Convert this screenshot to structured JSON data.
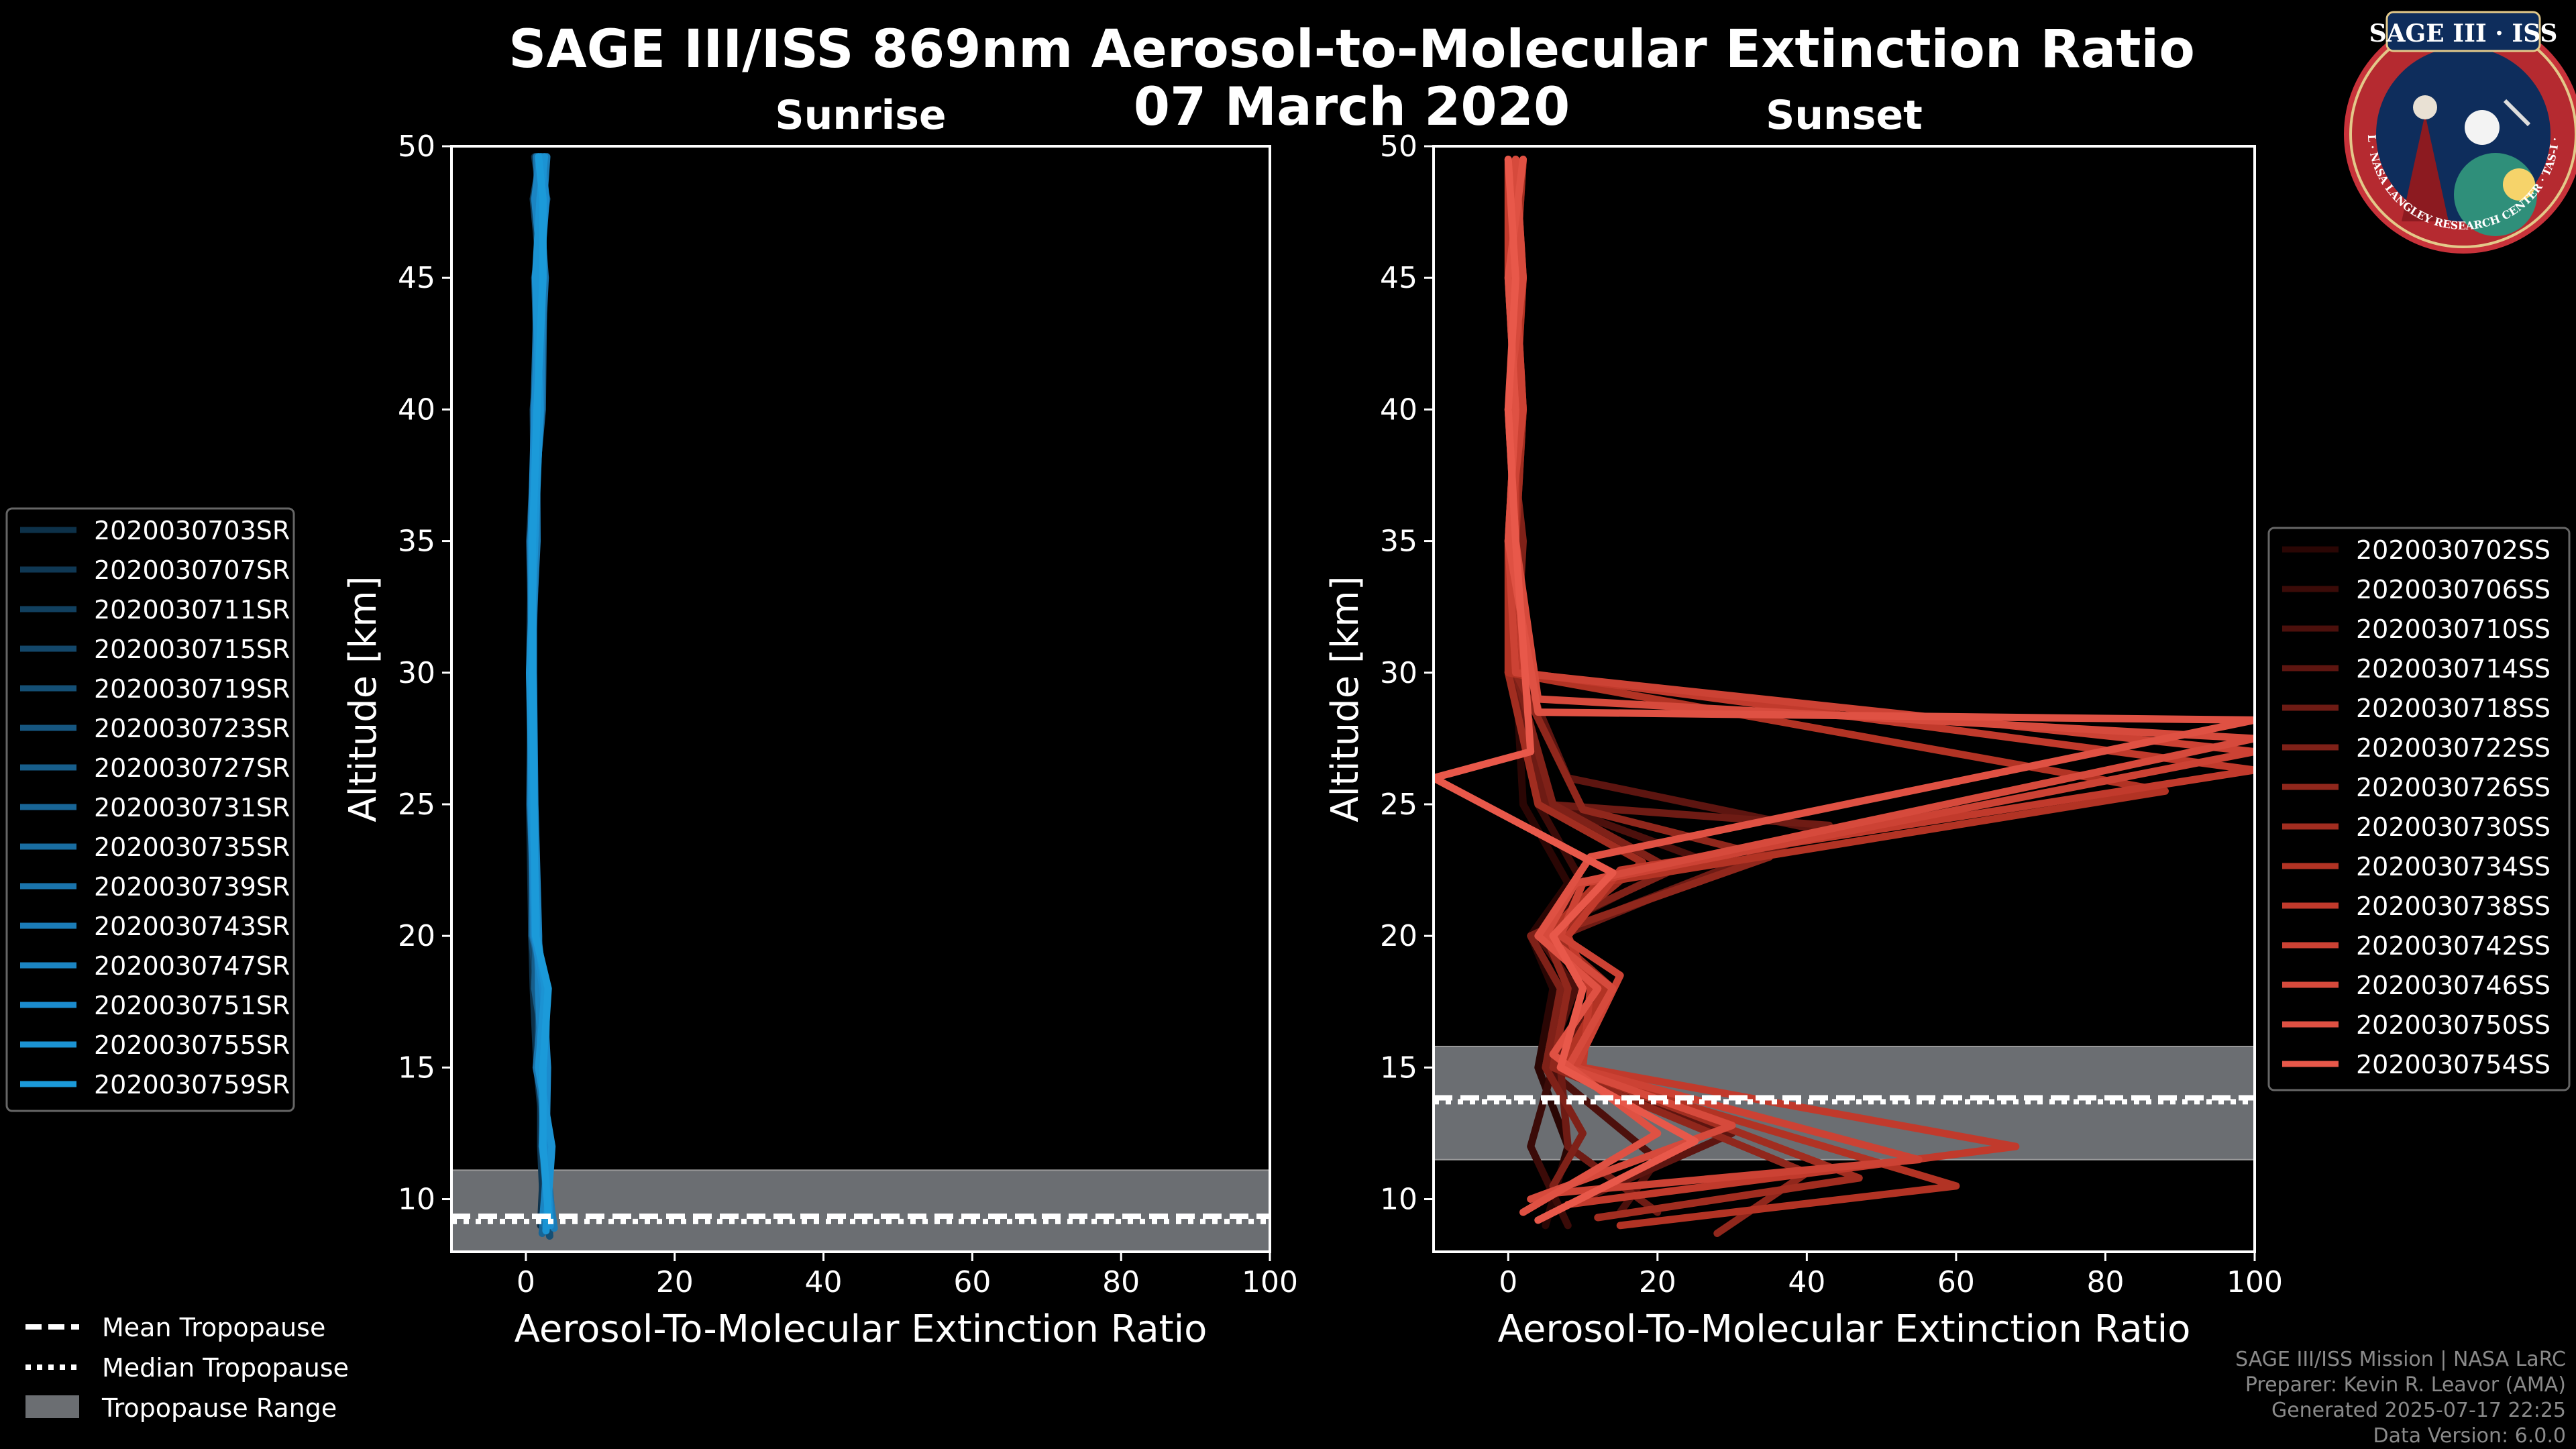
{
  "figure": {
    "title": "SAGE III/ISS 869nm Aerosol-to-Molecular Extinction Ratio",
    "date": "07 March 2020",
    "footer": [
      "SAGE III/ISS Mission | NASA LaRC",
      "Preparer: Kevin R. Leavor (AMA)",
      "Generated 2025-07-17 22:25",
      "Data Version: 6.0.0"
    ],
    "logo": {
      "title": "SAGE III · ISS",
      "ring_text": "BALL · NASA LANGLEY RESEARCH CENTER · TAS-I · ESA"
    },
    "colors": {
      "background": "#000000",
      "sunrise_accent": "#1b9ad9",
      "sunset_accent": "#e8584a",
      "tropopause_band": "#6b6e72"
    },
    "tropopause_legend": {
      "mean": "Mean Tropopause",
      "median": "Median Tropopause",
      "range": "Tropopause Range"
    }
  },
  "chart_data": [
    {
      "type": "line",
      "panel": "Sunrise",
      "title": "Sunrise",
      "xlabel": "Aerosol-To-Molecular Extinction Ratio",
      "ylabel": "Altitude [km]",
      "xlim": [
        -10,
        100
      ],
      "ylim": [
        8,
        50
      ],
      "xticks": [
        0,
        20,
        40,
        60,
        80,
        100
      ],
      "yticks": [
        10,
        15,
        20,
        25,
        30,
        35,
        40,
        45,
        50
      ],
      "legend_position": "left",
      "tropopause": {
        "mean_km": 9.35,
        "median_km": 9.15,
        "range_km": [
          8.0,
          11.1
        ]
      },
      "series": [
        {
          "name": "2020030703SR",
          "color": "#0d3149",
          "x": [
            2,
            2.5,
            1.5,
            1,
            0.8,
            0.5,
            0.8,
            1.2,
            1.5,
            2.5,
            2,
            1.2
          ],
          "y": [
            9,
            12,
            15,
            18,
            20,
            25,
            30,
            35,
            40,
            45,
            48,
            49.6
          ]
        },
        {
          "name": "2020030707SR",
          "color": "#0f3854",
          "x": [
            2.5,
            2,
            2,
            1.5,
            1,
            0.8,
            0.6,
            1,
            2,
            1.5,
            2.5,
            1.8
          ],
          "y": [
            8.8,
            12,
            15,
            18,
            20,
            25,
            30,
            35,
            40,
            45,
            48,
            49.6
          ]
        },
        {
          "name": "2020030711SR",
          "color": "#11405f",
          "x": [
            3,
            2.5,
            1.8,
            2,
            1.2,
            0.6,
            0.9,
            0.5,
            1.5,
            2,
            1,
            2
          ],
          "y": [
            9,
            12,
            15,
            18,
            20,
            25,
            30,
            35,
            40,
            45,
            48,
            49.6
          ]
        },
        {
          "name": "2020030715SR",
          "color": "#13476a",
          "x": [
            2.8,
            3,
            2.2,
            1.5,
            0.8,
            1,
            0.7,
            1.2,
            1,
            2.5,
            2,
            2.2
          ],
          "y": [
            9.2,
            12,
            15,
            18,
            20,
            25,
            30,
            35,
            40,
            45,
            48,
            49.6
          ]
        },
        {
          "name": "2020030719SR",
          "color": "#144f75",
          "x": [
            3.2,
            2.2,
            2.5,
            2.2,
            1.5,
            0.8,
            0.5,
            0.8,
            1.8,
            1.2,
            2.8,
            1.5
          ],
          "y": [
            8.6,
            12,
            15,
            18,
            20,
            25,
            30,
            35,
            40,
            45,
            48,
            49.6
          ]
        },
        {
          "name": "2020030723SR",
          "color": "#165680",
          "x": [
            2.4,
            2.8,
            1.6,
            1.8,
            1.1,
            0.7,
            0.8,
            1.4,
            1.3,
            2.2,
            1.6,
            2.6
          ],
          "y": [
            9,
            12,
            15,
            18,
            20,
            25,
            30,
            35,
            40,
            45,
            48,
            49.6
          ]
        },
        {
          "name": "2020030727SR",
          "color": "#175e8b",
          "x": [
            3.5,
            2.4,
            2.8,
            1.2,
            1.4,
            0.9,
            0.6,
            1.1,
            1.6,
            1.8,
            2.2,
            2
          ],
          "y": [
            9.4,
            12,
            15,
            18,
            20,
            25,
            30,
            35,
            40,
            45,
            48,
            49.6
          ]
        },
        {
          "name": "2020030731SR",
          "color": "#186596",
          "x": [
            2.2,
            3.2,
            2,
            2.6,
            0.9,
            1.1,
            1,
            0.6,
            2.2,
            2.4,
            1.4,
            1.6
          ],
          "y": [
            8.7,
            12,
            15,
            18,
            20,
            25,
            30,
            35,
            40,
            45,
            48,
            49.6
          ]
        },
        {
          "name": "2020030735SR",
          "color": "#196da1",
          "x": [
            3.6,
            2.6,
            2.4,
            1.9,
            1.3,
            0.6,
            0.7,
            1.3,
            1.1,
            1.6,
            2.6,
            2.4
          ],
          "y": [
            9.1,
            12,
            15,
            18,
            20,
            25,
            30,
            35,
            40,
            45,
            48,
            49.6
          ]
        },
        {
          "name": "2020030739SR",
          "color": "#1a74ac",
          "x": [
            2.6,
            3.4,
            1.4,
            2.4,
            1.6,
            1,
            0.9,
            0.9,
            1.7,
            2.6,
            1.8,
            1.4
          ],
          "y": [
            9,
            12,
            15,
            18,
            20,
            25,
            30,
            35,
            40,
            45,
            48,
            49.6
          ]
        },
        {
          "name": "2020030743SR",
          "color": "#1b7cb7",
          "x": [
            3.8,
            2.2,
            2.6,
            2.8,
            1,
            0.8,
            0.6,
            1.5,
            1.4,
            1.4,
            2.4,
            2.8
          ],
          "y": [
            8.9,
            12,
            15,
            18,
            20,
            25,
            30,
            35,
            40,
            45,
            48,
            49.6
          ]
        },
        {
          "name": "2020030747SR",
          "color": "#1b84c2",
          "x": [
            2.3,
            3.1,
            2.1,
            1.7,
            1.7,
            1.2,
            1,
            1,
            2,
            2.2,
            1.2,
            1.9
          ],
          "y": [
            9.3,
            12,
            15,
            18,
            20,
            25,
            30,
            35,
            40,
            45,
            48,
            49.6
          ]
        },
        {
          "name": "2020030751SR",
          "color": "#1b8bcd",
          "x": [
            3.3,
            2.7,
            2.9,
            2.3,
            1.2,
            0.7,
            0.8,
            0.7,
            1.2,
            1.9,
            2.7,
            2.1
          ],
          "y": [
            9,
            12,
            15,
            18,
            20,
            25,
            30,
            35,
            40,
            45,
            48,
            49.6
          ]
        },
        {
          "name": "2020030755SR",
          "color": "#1b93d3",
          "x": [
            2.7,
            3.5,
            1.7,
            2.6,
            1.5,
            0.9,
            0.5,
            1.2,
            1.9,
            1.3,
            1.9,
            2.5
          ],
          "y": [
            8.8,
            12,
            15,
            18,
            20,
            25,
            30,
            35,
            40,
            45,
            48,
            49.6
          ]
        },
        {
          "name": "2020030759SR",
          "color": "#1b9ad9",
          "x": [
            3.1,
            2.3,
            2.3,
            3,
            1.3,
            1.1,
            0.9,
            0.9,
            1.5,
            2.3,
            2.3,
            1.7
          ],
          "y": [
            9.2,
            12,
            15,
            18,
            20,
            25,
            30,
            35,
            40,
            45,
            48,
            49.6
          ]
        }
      ]
    },
    {
      "type": "line",
      "panel": "Sunset",
      "title": "Sunset",
      "xlabel": "Aerosol-To-Molecular Extinction Ratio",
      "ylabel": "Altitude [km]",
      "xlim": [
        -10,
        100
      ],
      "ylim": [
        8,
        50
      ],
      "xticks": [
        0,
        20,
        40,
        60,
        80,
        100
      ],
      "yticks": [
        10,
        15,
        20,
        25,
        30,
        35,
        40,
        45,
        50
      ],
      "legend_position": "right",
      "tropopause": {
        "mean_km": 13.85,
        "median_km": 13.7,
        "range_km": [
          11.5,
          15.8
        ]
      },
      "series": [
        {
          "name": "2020030702SS",
          "color": "#2a0604",
          "x": [
            5,
            8,
            4,
            6,
            3,
            8,
            2,
            1,
            0,
            1,
            2,
            1
          ],
          "y": [
            9,
            12,
            15,
            18,
            20,
            22,
            25,
            30,
            35,
            40,
            45,
            49.5
          ]
        },
        {
          "name": "2020030706SS",
          "color": "#3b0b08",
          "x": [
            8,
            3,
            6,
            8,
            5,
            10,
            4,
            0,
            1,
            2,
            0,
            2
          ],
          "y": [
            9,
            12,
            15,
            18,
            20,
            22,
            25,
            30,
            35,
            40,
            45,
            49.5
          ]
        },
        {
          "name": "2020030710SS",
          "color": "#4c100c",
          "x": [
            15,
            20,
            5,
            9,
            4,
            25,
            6,
            1,
            0,
            1,
            2,
            0
          ],
          "y": [
            9.5,
            11.5,
            15,
            18,
            20,
            23,
            25,
            30,
            35,
            40,
            45,
            49.5
          ]
        },
        {
          "name": "2020030714SS",
          "color": "#5d1510",
          "x": [
            10,
            30,
            6,
            12,
            6,
            42,
            8,
            2,
            1,
            0,
            1,
            1
          ],
          "y": [
            10,
            12.5,
            15,
            18,
            20,
            24,
            26,
            30,
            35,
            40,
            45,
            49.5
          ]
        },
        {
          "name": "2020030718SS",
          "color": "#6e1b14",
          "x": [
            20,
            8,
            7,
            10,
            7,
            43,
            5,
            0,
            1,
            2,
            1,
            2
          ],
          "y": [
            9.5,
            12,
            15,
            18,
            20,
            24.2,
            25,
            30,
            35,
            40,
            45,
            49.5
          ]
        },
        {
          "name": "2020030722SS",
          "color": "#7f2118",
          "x": [
            6,
            10,
            5,
            7,
            3,
            22,
            6,
            1,
            2,
            0,
            2,
            0
          ],
          "y": [
            10.5,
            12.5,
            15,
            18,
            20,
            22.5,
            25,
            30,
            35,
            40,
            45,
            49.5
          ]
        },
        {
          "name": "2020030726SS",
          "color": "#90271c",
          "x": [
            28,
            40,
            6,
            8,
            5,
            35,
            10,
            1,
            0,
            1,
            0,
            1
          ],
          "y": [
            8.7,
            11,
            15,
            18,
            20,
            23,
            24.8,
            30,
            35,
            40,
            45,
            49.5
          ]
        },
        {
          "name": "2020030730SS",
          "color": "#a12d20",
          "x": [
            12,
            47,
            8,
            14,
            6,
            18,
            4,
            0,
            1,
            2,
            1,
            2
          ],
          "y": [
            9.3,
            10.8,
            15,
            18,
            20,
            22.8,
            25,
            30,
            35,
            40,
            45,
            49.5
          ]
        },
        {
          "name": "2020030734SS",
          "color": "#b23324",
          "x": [
            15,
            60,
            7,
            13,
            5,
            12,
            88,
            0,
            0,
            1,
            2,
            1
          ],
          "y": [
            9,
            10.5,
            15,
            18,
            20,
            22,
            25.5,
            30,
            35,
            40,
            45,
            49.5
          ]
        },
        {
          "name": "2020030738SS",
          "color": "#c13a2c",
          "x": [
            8,
            68,
            10,
            11,
            8,
            15,
            100,
            2,
            1,
            1,
            0,
            0
          ],
          "y": [
            9.8,
            12,
            15,
            18,
            20,
            22.5,
            26.3,
            30,
            35,
            40,
            45,
            49.5
          ]
        },
        {
          "name": "2020030742SS",
          "color": "#cc4234",
          "x": [
            5,
            55,
            9,
            15,
            7,
            10,
            100,
            1,
            0,
            2,
            1,
            1
          ],
          "y": [
            10.2,
            11.5,
            15,
            18.5,
            20,
            22,
            27,
            30,
            35,
            40,
            45,
            49.5
          ]
        },
        {
          "name": "2020030746SS",
          "color": "#d64a3c",
          "x": [
            3,
            30,
            8,
            14,
            5,
            9,
            100,
            4,
            1,
            0,
            2,
            1
          ],
          "y": [
            10,
            12.8,
            15,
            18,
            20,
            22,
            27.5,
            29,
            35,
            40,
            45,
            49.5
          ]
        },
        {
          "name": "2020030750SS",
          "color": "#df5143",
          "x": [
            2,
            20,
            6,
            12,
            4,
            11,
            100,
            4,
            0,
            1,
            0,
            2
          ],
          "y": [
            9.5,
            12.5,
            15.5,
            18,
            20,
            23,
            28.2,
            28.5,
            35,
            40,
            45,
            49.5
          ]
        },
        {
          "name": "2020030754SS",
          "color": "#e8584a",
          "x": [
            4,
            25,
            7,
            10,
            6,
            14,
            -10,
            3,
            1,
            0,
            1,
            0
          ],
          "y": [
            9.2,
            12.2,
            15,
            18,
            20,
            22.4,
            26,
            27,
            35,
            40,
            45,
            49.5
          ]
        }
      ]
    }
  ]
}
